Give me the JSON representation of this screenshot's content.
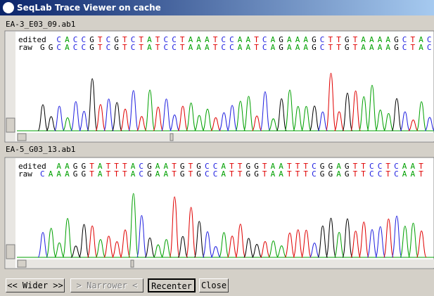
{
  "window": {
    "title": "SeqLab Trace Viewer on cache"
  },
  "panels": [
    {
      "file": "EA-3_E03_09.ab1",
      "rows": [
        {
          "label": "edited",
          "sequence": [
            "C",
            "A",
            "C",
            "C",
            "G",
            "T",
            "C",
            "G",
            "T",
            "C",
            "T",
            "A",
            "T",
            "C",
            "C",
            "T",
            "A",
            "A",
            "A",
            "T",
            "C",
            "C",
            "A",
            "A",
            "T",
            "C",
            "A",
            "G",
            "A",
            "A",
            "A",
            "G",
            "C",
            "T",
            "T",
            "G",
            "T",
            "A",
            "A",
            "A",
            "A",
            "G",
            "C",
            "T",
            "A",
            "C"
          ]
        },
        {
          "label": "raw",
          "sequence": [
            "G",
            "G",
            "C",
            "A",
            "C",
            "C",
            "G",
            "T",
            "C",
            "G",
            "T",
            "C",
            "T",
            "A",
            "T",
            "C",
            "C",
            "T",
            "A",
            "A",
            "A",
            "T",
            "C",
            "C",
            "A",
            "A",
            "T",
            "C",
            "A",
            "G",
            "A",
            "A",
            "A",
            "G",
            "C",
            "T",
            "T",
            "G",
            "T",
            "A",
            "A",
            "A",
            "A",
            "G",
            "C",
            "T",
            "A",
            "C"
          ]
        }
      ]
    },
    {
      "file": "EA-5_G03_13.ab1",
      "rows": [
        {
          "label": "edited",
          "sequence": [
            "A",
            "A",
            "G",
            "G",
            "T",
            "A",
            "T",
            "T",
            "T",
            "A",
            "C",
            "G",
            "A",
            "A",
            "T",
            "G",
            "T",
            "G",
            "C",
            "C",
            "A",
            "T",
            "T",
            "G",
            "G",
            "T",
            "A",
            "A",
            "T",
            "T",
            "T",
            "C",
            "G",
            "G",
            "A",
            "G",
            "T",
            "T",
            "C",
            "C",
            "T",
            "C",
            "A",
            "A",
            "T"
          ]
        },
        {
          "label": "raw",
          "sequence": [
            "C",
            "A",
            "A",
            "A",
            "G",
            "G",
            "T",
            "A",
            "T",
            "T",
            "T",
            "A",
            "C",
            "G",
            "A",
            "A",
            "T",
            "G",
            "T",
            "G",
            "C",
            "C",
            "A",
            "T",
            "T",
            "G",
            "G",
            "T",
            "A",
            "A",
            "T",
            "T",
            "T",
            "C",
            "G",
            "G",
            "A",
            "G",
            "T",
            "T",
            "C",
            "C",
            "T",
            "C",
            "A",
            "A",
            "T"
          ]
        }
      ]
    }
  ],
  "buttons": [
    "<< Wider >>",
    "> Narrower <",
    "Recenter",
    "Close"
  ]
}
